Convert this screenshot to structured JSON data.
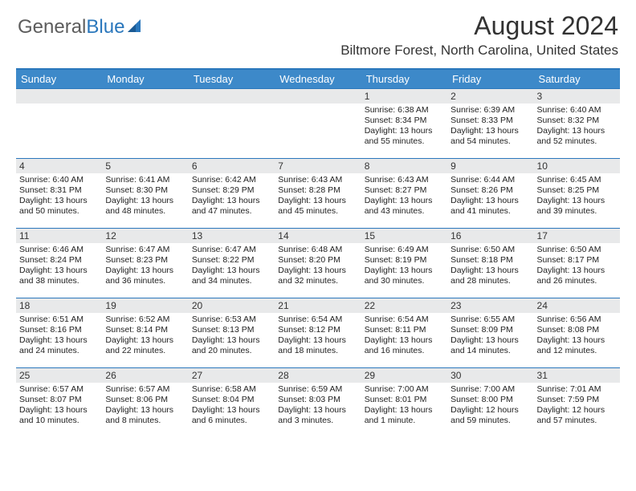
{
  "logo": {
    "text1": "General",
    "text2": "Blue"
  },
  "title": "August 2024",
  "location": "Biltmore Forest, North Carolina, United States",
  "colors": {
    "header_bg": "#3d89c9",
    "header_border": "#2a77bc",
    "daynum_bg": "#e8e9ea",
    "text": "#222222",
    "logo_gray": "#5c5c5c",
    "logo_blue": "#2a77bc"
  },
  "days_of_week": [
    "Sunday",
    "Monday",
    "Tuesday",
    "Wednesday",
    "Thursday",
    "Friday",
    "Saturday"
  ],
  "weeks": [
    [
      {
        "n": "",
        "sr": "",
        "ss": "",
        "dl": ""
      },
      {
        "n": "",
        "sr": "",
        "ss": "",
        "dl": ""
      },
      {
        "n": "",
        "sr": "",
        "ss": "",
        "dl": ""
      },
      {
        "n": "",
        "sr": "",
        "ss": "",
        "dl": ""
      },
      {
        "n": "1",
        "sr": "Sunrise: 6:38 AM",
        "ss": "Sunset: 8:34 PM",
        "dl": "Daylight: 13 hours and 55 minutes."
      },
      {
        "n": "2",
        "sr": "Sunrise: 6:39 AM",
        "ss": "Sunset: 8:33 PM",
        "dl": "Daylight: 13 hours and 54 minutes."
      },
      {
        "n": "3",
        "sr": "Sunrise: 6:40 AM",
        "ss": "Sunset: 8:32 PM",
        "dl": "Daylight: 13 hours and 52 minutes."
      }
    ],
    [
      {
        "n": "4",
        "sr": "Sunrise: 6:40 AM",
        "ss": "Sunset: 8:31 PM",
        "dl": "Daylight: 13 hours and 50 minutes."
      },
      {
        "n": "5",
        "sr": "Sunrise: 6:41 AM",
        "ss": "Sunset: 8:30 PM",
        "dl": "Daylight: 13 hours and 48 minutes."
      },
      {
        "n": "6",
        "sr": "Sunrise: 6:42 AM",
        "ss": "Sunset: 8:29 PM",
        "dl": "Daylight: 13 hours and 47 minutes."
      },
      {
        "n": "7",
        "sr": "Sunrise: 6:43 AM",
        "ss": "Sunset: 8:28 PM",
        "dl": "Daylight: 13 hours and 45 minutes."
      },
      {
        "n": "8",
        "sr": "Sunrise: 6:43 AM",
        "ss": "Sunset: 8:27 PM",
        "dl": "Daylight: 13 hours and 43 minutes."
      },
      {
        "n": "9",
        "sr": "Sunrise: 6:44 AM",
        "ss": "Sunset: 8:26 PM",
        "dl": "Daylight: 13 hours and 41 minutes."
      },
      {
        "n": "10",
        "sr": "Sunrise: 6:45 AM",
        "ss": "Sunset: 8:25 PM",
        "dl": "Daylight: 13 hours and 39 minutes."
      }
    ],
    [
      {
        "n": "11",
        "sr": "Sunrise: 6:46 AM",
        "ss": "Sunset: 8:24 PM",
        "dl": "Daylight: 13 hours and 38 minutes."
      },
      {
        "n": "12",
        "sr": "Sunrise: 6:47 AM",
        "ss": "Sunset: 8:23 PM",
        "dl": "Daylight: 13 hours and 36 minutes."
      },
      {
        "n": "13",
        "sr": "Sunrise: 6:47 AM",
        "ss": "Sunset: 8:22 PM",
        "dl": "Daylight: 13 hours and 34 minutes."
      },
      {
        "n": "14",
        "sr": "Sunrise: 6:48 AM",
        "ss": "Sunset: 8:20 PM",
        "dl": "Daylight: 13 hours and 32 minutes."
      },
      {
        "n": "15",
        "sr": "Sunrise: 6:49 AM",
        "ss": "Sunset: 8:19 PM",
        "dl": "Daylight: 13 hours and 30 minutes."
      },
      {
        "n": "16",
        "sr": "Sunrise: 6:50 AM",
        "ss": "Sunset: 8:18 PM",
        "dl": "Daylight: 13 hours and 28 minutes."
      },
      {
        "n": "17",
        "sr": "Sunrise: 6:50 AM",
        "ss": "Sunset: 8:17 PM",
        "dl": "Daylight: 13 hours and 26 minutes."
      }
    ],
    [
      {
        "n": "18",
        "sr": "Sunrise: 6:51 AM",
        "ss": "Sunset: 8:16 PM",
        "dl": "Daylight: 13 hours and 24 minutes."
      },
      {
        "n": "19",
        "sr": "Sunrise: 6:52 AM",
        "ss": "Sunset: 8:14 PM",
        "dl": "Daylight: 13 hours and 22 minutes."
      },
      {
        "n": "20",
        "sr": "Sunrise: 6:53 AM",
        "ss": "Sunset: 8:13 PM",
        "dl": "Daylight: 13 hours and 20 minutes."
      },
      {
        "n": "21",
        "sr": "Sunrise: 6:54 AM",
        "ss": "Sunset: 8:12 PM",
        "dl": "Daylight: 13 hours and 18 minutes."
      },
      {
        "n": "22",
        "sr": "Sunrise: 6:54 AM",
        "ss": "Sunset: 8:11 PM",
        "dl": "Daylight: 13 hours and 16 minutes."
      },
      {
        "n": "23",
        "sr": "Sunrise: 6:55 AM",
        "ss": "Sunset: 8:09 PM",
        "dl": "Daylight: 13 hours and 14 minutes."
      },
      {
        "n": "24",
        "sr": "Sunrise: 6:56 AM",
        "ss": "Sunset: 8:08 PM",
        "dl": "Daylight: 13 hours and 12 minutes."
      }
    ],
    [
      {
        "n": "25",
        "sr": "Sunrise: 6:57 AM",
        "ss": "Sunset: 8:07 PM",
        "dl": "Daylight: 13 hours and 10 minutes."
      },
      {
        "n": "26",
        "sr": "Sunrise: 6:57 AM",
        "ss": "Sunset: 8:06 PM",
        "dl": "Daylight: 13 hours and 8 minutes."
      },
      {
        "n": "27",
        "sr": "Sunrise: 6:58 AM",
        "ss": "Sunset: 8:04 PM",
        "dl": "Daylight: 13 hours and 6 minutes."
      },
      {
        "n": "28",
        "sr": "Sunrise: 6:59 AM",
        "ss": "Sunset: 8:03 PM",
        "dl": "Daylight: 13 hours and 3 minutes."
      },
      {
        "n": "29",
        "sr": "Sunrise: 7:00 AM",
        "ss": "Sunset: 8:01 PM",
        "dl": "Daylight: 13 hours and 1 minute."
      },
      {
        "n": "30",
        "sr": "Sunrise: 7:00 AM",
        "ss": "Sunset: 8:00 PM",
        "dl": "Daylight: 12 hours and 59 minutes."
      },
      {
        "n": "31",
        "sr": "Sunrise: 7:01 AM",
        "ss": "Sunset: 7:59 PM",
        "dl": "Daylight: 12 hours and 57 minutes."
      }
    ]
  ]
}
